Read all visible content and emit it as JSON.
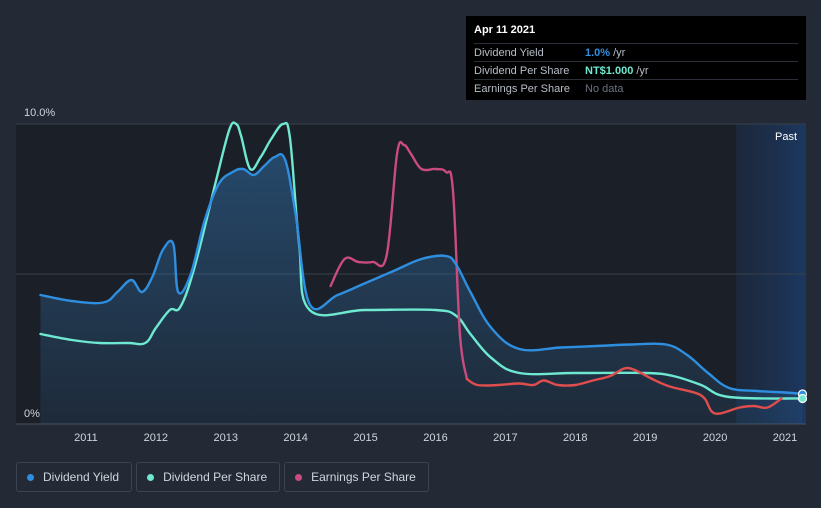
{
  "chart_data": {
    "type": "line",
    "ylim": [
      0,
      10
    ],
    "y_tick_labels": [
      "10.0%",
      "0%"
    ],
    "x_ticks": [
      2011,
      2012,
      2013,
      2014,
      2015,
      2016,
      2017,
      2018,
      2019,
      2020,
      2021
    ],
    "past_label": "Past",
    "series": [
      {
        "name": "Dividend Yield",
        "color": "#2e8fe0",
        "x": [
          2010.35,
          2010.8,
          2011.25,
          2011.45,
          2011.65,
          2011.8,
          2011.95,
          2012.1,
          2012.25,
          2012.32,
          2012.5,
          2012.7,
          2012.9,
          2013.1,
          2013.25,
          2013.4,
          2013.55,
          2013.7,
          2013.85,
          2014.0,
          2014.2,
          2014.6,
          2015.0,
          2015.4,
          2015.8,
          2016.15,
          2016.3,
          2016.5,
          2016.8,
          2017.2,
          2017.8,
          2018.3,
          2018.8,
          2019.3,
          2019.6,
          2019.9,
          2020.2,
          2020.6,
          2021.0,
          2021.25
        ],
        "values": [
          4.3,
          4.1,
          4.05,
          4.4,
          4.8,
          4.4,
          4.9,
          5.8,
          6.0,
          4.4,
          5.0,
          6.8,
          8.0,
          8.4,
          8.5,
          8.3,
          8.6,
          8.9,
          8.8,
          7.0,
          4.0,
          4.3,
          4.7,
          5.1,
          5.5,
          5.6,
          5.3,
          4.4,
          3.2,
          2.5,
          2.55,
          2.6,
          2.65,
          2.65,
          2.3,
          1.7,
          1.2,
          1.1,
          1.05,
          1.0
        ]
      },
      {
        "name": "Dividend Per Share",
        "color": "#6ee8d0",
        "x": [
          2010.35,
          2010.8,
          2011.2,
          2011.6,
          2011.85,
          2012.0,
          2012.2,
          2012.35,
          2012.55,
          2012.85,
          2013.05,
          2013.15,
          2013.22,
          2013.35,
          2013.5,
          2013.65,
          2013.82,
          2013.92,
          2014.05,
          2014.2,
          2015.0,
          2016.0,
          2016.3,
          2016.5,
          2016.8,
          2017.2,
          2018.0,
          2019.0,
          2019.4,
          2019.8,
          2020.2,
          2021.25
        ],
        "values": [
          3.0,
          2.8,
          2.7,
          2.7,
          2.7,
          3.2,
          3.8,
          3.9,
          5.2,
          8.0,
          9.8,
          10.0,
          9.6,
          8.5,
          8.9,
          9.5,
          10.0,
          9.5,
          6.0,
          3.8,
          3.8,
          3.8,
          3.6,
          3.0,
          2.2,
          1.7,
          1.7,
          1.7,
          1.6,
          1.3,
          0.9,
          0.85
        ]
      },
      {
        "name": "Earnings Per Share",
        "color": "#c94b7f",
        "x": [
          2014.5,
          2014.7,
          2014.9,
          2015.1,
          2015.3,
          2015.45,
          2015.55,
          2015.65,
          2015.8,
          2016.0,
          2016.15,
          2016.25,
          2016.35,
          2016.45
        ],
        "values": [
          4.6,
          5.5,
          5.4,
          5.4,
          5.6,
          9.0,
          9.3,
          9.0,
          8.5,
          8.5,
          8.4,
          7.8,
          3.0,
          1.5
        ]
      },
      {
        "name": "Earnings Per Share (negative)",
        "color": "#e04d4d",
        "x": [
          2016.45,
          2016.6,
          2016.9,
          2017.2,
          2017.4,
          2017.55,
          2017.75,
          2018.0,
          2018.25,
          2018.5,
          2018.7,
          2018.85,
          2019.1,
          2019.35,
          2019.7,
          2019.85,
          2020.0,
          2020.35,
          2020.55,
          2020.75,
          2020.95
        ],
        "values": [
          1.5,
          1.3,
          1.3,
          1.35,
          1.3,
          1.45,
          1.3,
          1.3,
          1.45,
          1.6,
          1.85,
          1.8,
          1.5,
          1.25,
          1.05,
          0.85,
          0.35,
          0.55,
          0.6,
          0.55,
          0.85
        ]
      }
    ],
    "current_marker": {
      "x": 2021.25,
      "dividend_yield": 1.0,
      "dividend_per_share": 0.85
    },
    "forecast_start": 2020.3
  },
  "tooltip": {
    "date": "Apr 11 2021",
    "rows": [
      {
        "label": "Dividend Yield",
        "value": "1.0%",
        "unit": "/yr",
        "color": "#2e8fe0"
      },
      {
        "label": "Dividend Per Share",
        "value": "NT$1.000",
        "unit": "/yr",
        "color": "#6ee8d0"
      },
      {
        "label": "Earnings Per Share",
        "value": "No data",
        "unit": "",
        "color": "#6c7380"
      }
    ]
  },
  "legend": [
    {
      "label": "Dividend Yield",
      "color": "#2e8fe0"
    },
    {
      "label": "Dividend Per Share",
      "color": "#6ee8d0"
    },
    {
      "label": "Earnings Per Share",
      "color": "#c94b7f"
    }
  ]
}
